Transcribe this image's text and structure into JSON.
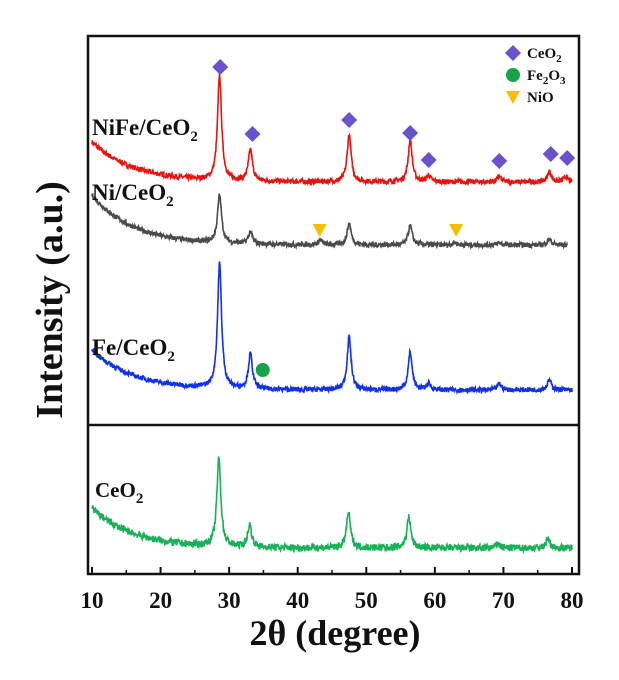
{
  "chart_data": {
    "type": "line",
    "xlabel": "2θ (degree)",
    "ylabel": "Intensity (a.u.)",
    "xlim": [
      10,
      80
    ],
    "xticks": [
      "10",
      "20",
      "30",
      "40",
      "50",
      "60",
      "70",
      "80"
    ],
    "grid": false,
    "legend_position": "top-right",
    "legend": [
      {
        "label": "CeO",
        "sub": "2",
        "marker": "diamond",
        "color": "#6a52cc"
      },
      {
        "label": "Fe",
        "sub": "2",
        "label2": "O",
        "sub2": "3",
        "marker": "circle",
        "color": "#17a34a"
      },
      {
        "label": "NiO",
        "marker": "triangle-down",
        "color": "#f5bf00"
      }
    ],
    "series": [
      {
        "name": "NiFe/CeO2",
        "label": "NiFe/CeO",
        "sub": "2",
        "color": "#e8130f",
        "peaks": [
          [
            28.6,
            1.0
          ],
          [
            33.1,
            0.3
          ],
          [
            47.5,
            0.45
          ],
          [
            56.4,
            0.4
          ],
          [
            59.1,
            0.06
          ],
          [
            69.4,
            0.05
          ],
          [
            76.7,
            0.1
          ],
          [
            79.1,
            0.05
          ]
        ]
      },
      {
        "name": "Ni/CeO2",
        "label": "Ni/CeO",
        "sub": "2",
        "color": "#4a4a4a",
        "peaks": [
          [
            28.6,
            1.0
          ],
          [
            33.1,
            0.25
          ],
          [
            43.3,
            0.1
          ],
          [
            47.5,
            0.45
          ],
          [
            56.4,
            0.4
          ],
          [
            62.9,
            0.05
          ],
          [
            69.4,
            0.05
          ],
          [
            76.7,
            0.12
          ]
        ]
      },
      {
        "name": "Fe/CeO2",
        "label": "Fe/CeO",
        "sub": "2",
        "color": "#1030ee",
        "peaks": [
          [
            28.6,
            1.0
          ],
          [
            33.1,
            0.28
          ],
          [
            47.5,
            0.42
          ],
          [
            56.4,
            0.3
          ],
          [
            59.1,
            0.05
          ],
          [
            69.4,
            0.05
          ],
          [
            76.7,
            0.08
          ]
        ]
      },
      {
        "name": "CeO2",
        "label": "CeO",
        "sub": "2",
        "color": "#19b057",
        "peaks": [
          [
            28.5,
            1.0
          ],
          [
            33.0,
            0.25
          ],
          [
            47.4,
            0.4
          ],
          [
            56.2,
            0.35
          ],
          [
            69.2,
            0.05
          ],
          [
            76.5,
            0.1
          ]
        ]
      }
    ],
    "markers": {
      "CeO2": [
        28.7,
        33.4,
        47.5,
        56.4,
        59.1,
        69.4,
        76.9,
        79.3
      ],
      "Fe2O3": [
        34.9
      ],
      "NiO": [
        43.2,
        63.1
      ]
    }
  }
}
